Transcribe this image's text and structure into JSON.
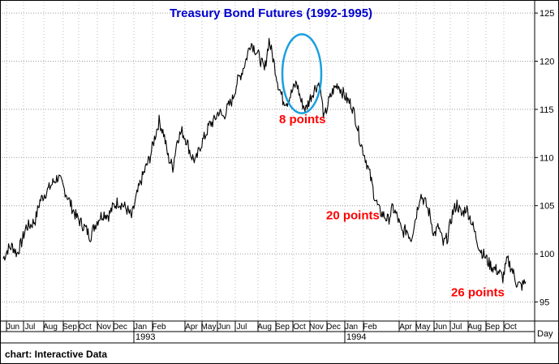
{
  "chart_data": {
    "type": "line",
    "title": "Treasury Bond Futures (1992-1995)",
    "x_unit_label": "Day",
    "footer": "chart: Interactive Data",
    "ylim": [
      93.5,
      126.5
    ],
    "y_ticks": [
      95,
      100,
      105,
      110,
      115,
      120,
      125
    ],
    "grid": true,
    "months": [
      "Jun",
      "Jul",
      "Aug",
      "Sep",
      "Oct",
      "Nov",
      "Dec",
      "Jan",
      "Feb",
      "Apr",
      "May",
      "Jun",
      "Jul",
      "Aug",
      "Sep",
      "Oct",
      "Nov",
      "Dec",
      "Jan",
      "Feb",
      "Apr",
      "May",
      "Jun",
      "Jul",
      "Aug",
      "Sep",
      "Oct"
    ],
    "years": [
      {
        "label": "1993",
        "month_index": 7
      },
      {
        "label": "1994",
        "month_index": 18
      }
    ],
    "series": [
      {
        "values": [
          99.5,
          100.5,
          100.8,
          100.0,
          101.2,
          102.8,
          103.0,
          103.5,
          105.5,
          106.2,
          106.8,
          107.5,
          108.0,
          107.0,
          106.0,
          104.8,
          103.8,
          103.2,
          102.6,
          101.8,
          103.0,
          103.8,
          104.2,
          104.0,
          104.9,
          105.4,
          105.1,
          104.6,
          103.8,
          105.8,
          107.5,
          108.8,
          110.0,
          112.0,
          113.8,
          112.5,
          110.0,
          109.0,
          112.0,
          112.7,
          111.8,
          110.2,
          109.6,
          111.2,
          112.2,
          113.4,
          113.8,
          114.8,
          114.2,
          115.2,
          116.0,
          117.8,
          118.8,
          120.2,
          122.0,
          121.2,
          120.3,
          119.0,
          122.2,
          120.0,
          117.6,
          116.0,
          115.8,
          116.8,
          117.8,
          115.8,
          115.0,
          116.2,
          117.2,
          117.8,
          114.0,
          115.8,
          117.0,
          117.6,
          116.8,
          116.0,
          115.5,
          113.8,
          111.5,
          110.0,
          108.2,
          106.0,
          104.5,
          104.0,
          103.5,
          104.8,
          103.8,
          102.2,
          102.5,
          101.6,
          103.8,
          106.2,
          105.4,
          104.2,
          102.0,
          102.8,
          101.0,
          101.8,
          104.2,
          105.2,
          104.0,
          104.8,
          103.6,
          102.0,
          100.5,
          99.8,
          99.0,
          98.5,
          98.2,
          97.5,
          99.4,
          98.4,
          97.0,
          96.6,
          97.1
        ]
      }
    ],
    "annotations": [
      {
        "text": "8 points",
        "value": 114.0,
        "color": "#ff0000"
      },
      {
        "text": "20 points",
        "value": 104.0,
        "color": "#ff0000"
      },
      {
        "text": "26 points",
        "value": 96.0,
        "color": "#ff0000"
      }
    ],
    "highlight_ellipse": {
      "color": "#1a9fe0",
      "y_top": 122.8,
      "y_bottom": 114.6
    },
    "colors": {
      "title": "#0000cc",
      "line": "#000000",
      "grid": "#9a9a9a",
      "dot_grid": "#bbbbbb"
    }
  }
}
